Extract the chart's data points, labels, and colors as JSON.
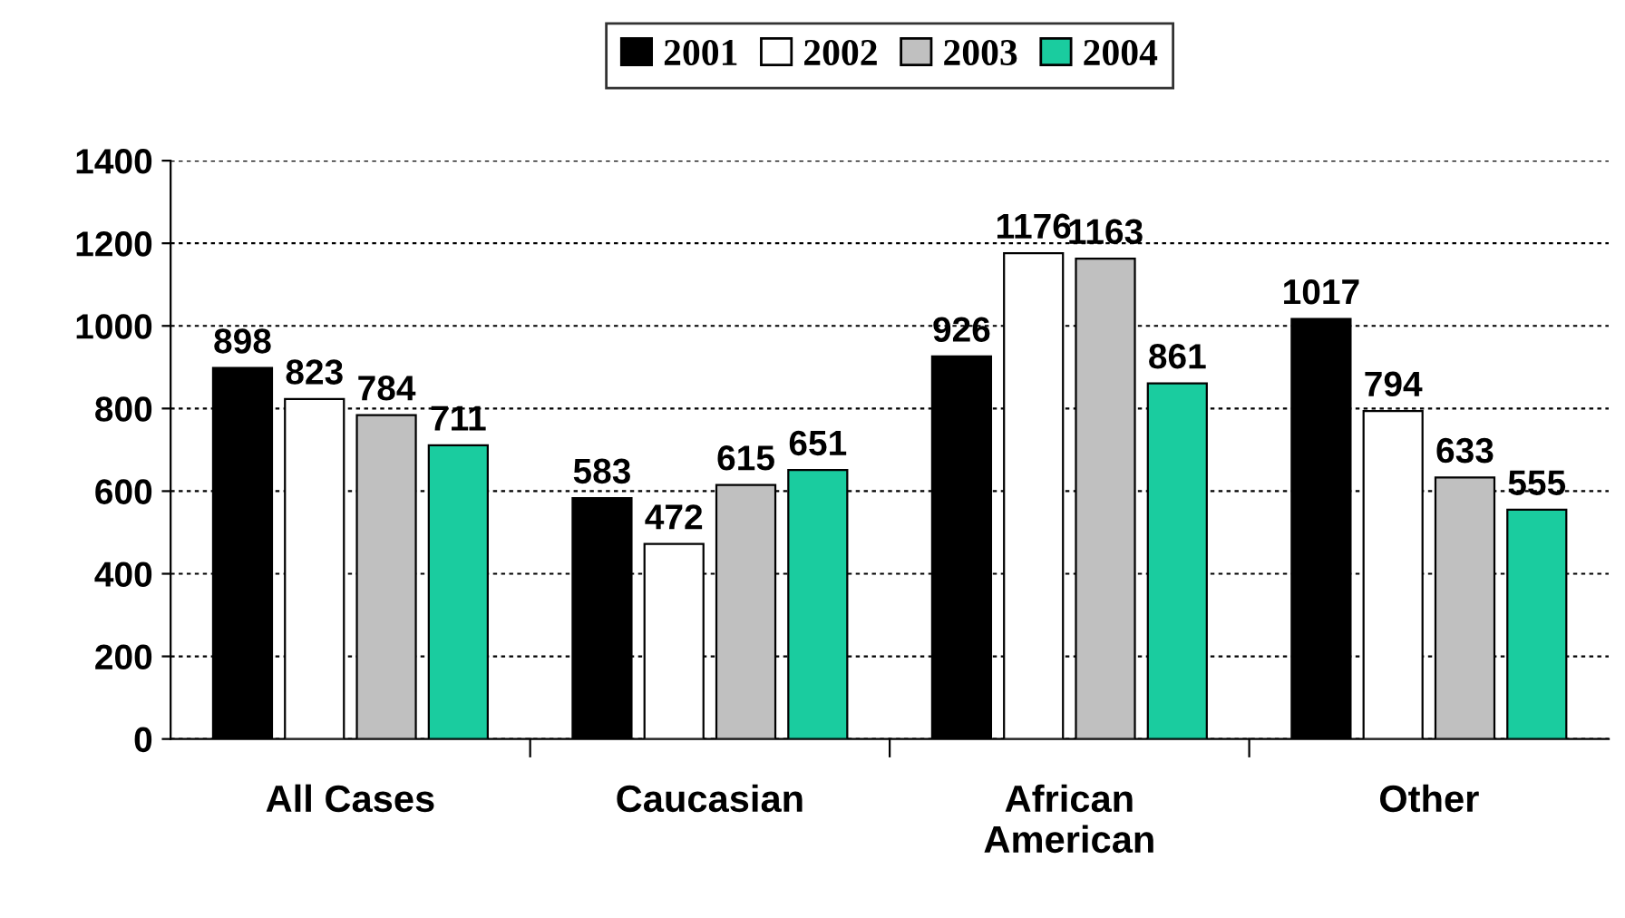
{
  "chart_data": {
    "type": "bar",
    "categories": [
      "All Cases",
      "Caucasian",
      "African\nAmerican",
      "Other"
    ],
    "series": [
      {
        "name": "2001",
        "color": "#000000",
        "values": [
          898,
          583,
          926,
          1017
        ]
      },
      {
        "name": "2002",
        "color": "#ffffff",
        "values": [
          823,
          472,
          1176,
          794
        ]
      },
      {
        "name": "2003",
        "color": "#c0c0c0",
        "values": [
          784,
          615,
          1163,
          633
        ]
      },
      {
        "name": "2004",
        "color": "#1acc9f",
        "values": [
          711,
          651,
          861,
          555
        ]
      }
    ],
    "ylim": [
      0,
      1400
    ],
    "yticks": [
      0,
      200,
      400,
      600,
      800,
      1000,
      1200,
      1400
    ],
    "grid": "y",
    "legend": "top",
    "data_labels": true
  }
}
